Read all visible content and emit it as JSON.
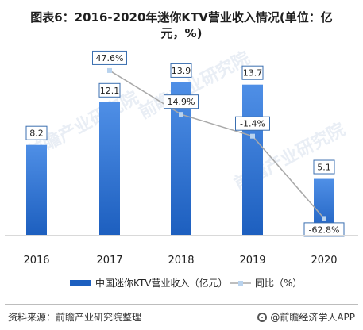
{
  "title": {
    "line1": "图表6：2016-2020年迷你KTV营业收入情况(单位：亿",
    "line2": "元，%)"
  },
  "watermark": {
    "text": "前瞻产业研究院"
  },
  "footer": {
    "source": "资料来源：前瞻产业研究院整理",
    "brand": "@前瞻经济学人APP",
    "brand_icon": "qianzhan-logo-icon"
  },
  "colors": {
    "bar_top": "#4f8fe6",
    "bar_bottom": "#1d5fbf",
    "line": "#a9a9a9",
    "marker": "#b9d3ee",
    "label_border": "#3b6fb0"
  },
  "chart_data": {
    "type": "bar",
    "categories": [
      "2016",
      "2017",
      "2018",
      "2019",
      "2020"
    ],
    "series": [
      {
        "name": "中国迷你KTV营业收入（亿元）",
        "type": "bar",
        "values": [
          8.2,
          12.1,
          13.9,
          13.7,
          5.1
        ],
        "labels": [
          "8.2",
          "12.1",
          "13.9",
          "13.7",
          "5.1"
        ]
      },
      {
        "name": "同比（%）",
        "type": "line",
        "values": [
          null,
          47.6,
          14.9,
          -1.4,
          -62.8
        ],
        "labels": [
          "",
          "47.6%",
          "14.9%",
          "-1.4%",
          "-62.8%"
        ]
      }
    ],
    "legend_position": "bottom",
    "grid": false,
    "axis": {
      "y_visible": false
    },
    "bar_ylim": [
      0,
      16.5
    ],
    "line_ylim": [
      -75,
      60
    ]
  }
}
